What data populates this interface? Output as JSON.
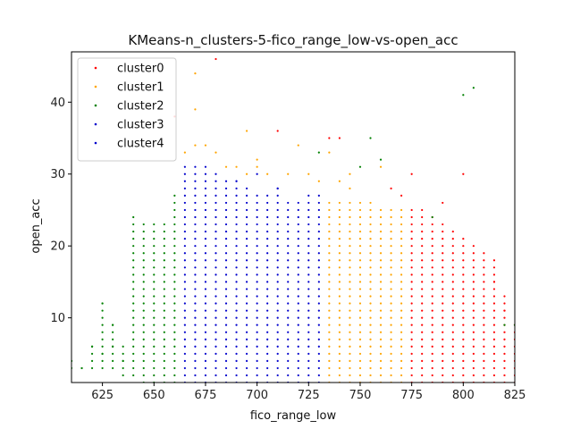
{
  "chart_data": {
    "type": "scatter",
    "title": "KMeans-n_clusters-5-fico_range_low-vs-open_acc",
    "xlabel": "fico_range_low",
    "ylabel": "open_acc",
    "xlim": [
      610,
      825
    ],
    "ylim": [
      1,
      47
    ],
    "xticks": [
      625,
      650,
      675,
      700,
      725,
      750,
      775,
      800,
      825
    ],
    "yticks": [
      10,
      20,
      30,
      40
    ],
    "grid": false,
    "legend_position": "top-left",
    "grid_fill": {
      "x_start": 610,
      "x_step": 5,
      "cluster_ranges": [
        {
          "cluster": "cluster2",
          "x_min": 610,
          "x_max": 660
        },
        {
          "cluster": "cluster3",
          "x_min": 665,
          "x_max": 730
        },
        {
          "cluster": "cluster1",
          "x_min": 735,
          "x_max": 770
        },
        {
          "cluster": "cluster0",
          "x_min": 775,
          "x_max": 825
        }
      ],
      "column_max_y": [
        [
          610,
          4
        ],
        [
          615,
          3
        ],
        [
          620,
          6
        ],
        [
          625,
          12
        ],
        [
          630,
          9
        ],
        [
          635,
          6
        ],
        [
          640,
          24
        ],
        [
          645,
          23
        ],
        [
          650,
          23
        ],
        [
          655,
          23
        ],
        [
          660,
          27
        ],
        [
          665,
          31
        ],
        [
          670,
          31
        ],
        [
          675,
          31
        ],
        [
          680,
          30
        ],
        [
          685,
          29
        ],
        [
          690,
          29
        ],
        [
          695,
          28
        ],
        [
          700,
          27
        ],
        [
          705,
          27
        ],
        [
          710,
          28
        ],
        [
          715,
          26
        ],
        [
          720,
          26
        ],
        [
          725,
          27
        ],
        [
          730,
          27
        ],
        [
          735,
          26
        ],
        [
          740,
          26
        ],
        [
          745,
          26
        ],
        [
          750,
          26
        ],
        [
          755,
          26
        ],
        [
          760,
          25
        ],
        [
          765,
          25
        ],
        [
          770,
          25
        ],
        [
          775,
          25
        ],
        [
          780,
          25
        ],
        [
          785,
          24
        ],
        [
          790,
          23
        ],
        [
          795,
          22
        ],
        [
          800,
          21
        ],
        [
          805,
          20
        ],
        [
          810,
          19
        ],
        [
          815,
          18
        ],
        [
          820,
          13
        ],
        [
          825,
          9
        ]
      ],
      "column_min_y": [
        [
          610,
          3
        ],
        [
          615,
          3
        ],
        [
          620,
          3
        ],
        [
          625,
          3
        ],
        [
          630,
          3
        ],
        [
          635,
          2
        ],
        [
          640,
          2
        ]
      ]
    },
    "series": [
      {
        "name": "cluster0",
        "color": "#ff0000",
        "extra_points": [
          [
            680,
            46
          ],
          [
            660,
            38
          ],
          [
            710,
            36
          ],
          [
            735,
            35
          ],
          [
            740,
            35
          ],
          [
            800,
            30
          ],
          [
            790,
            26
          ],
          [
            815,
            15
          ],
          [
            820,
            11
          ],
          [
            765,
            28
          ],
          [
            775,
            30
          ],
          [
            770,
            27
          ]
        ]
      },
      {
        "name": "cluster1",
        "color": "#ffa500",
        "extra_points": [
          [
            670,
            44
          ],
          [
            670,
            39
          ],
          [
            695,
            36
          ],
          [
            720,
            34
          ],
          [
            680,
            33
          ],
          [
            670,
            34
          ],
          [
            675,
            34
          ],
          [
            665,
            33
          ],
          [
            700,
            32
          ],
          [
            700,
            31
          ],
          [
            690,
            31
          ],
          [
            685,
            31
          ],
          [
            695,
            30
          ],
          [
            705,
            30
          ],
          [
            715,
            30
          ],
          [
            725,
            30
          ],
          [
            730,
            29
          ],
          [
            745,
            28
          ],
          [
            740,
            29
          ],
          [
            760,
            31
          ],
          [
            735,
            33
          ],
          [
            745,
            30
          ]
        ]
      },
      {
        "name": "cluster2",
        "color": "#008000",
        "extra_points": [
          [
            805,
            42
          ],
          [
            800,
            41
          ],
          [
            755,
            35
          ],
          [
            730,
            33
          ],
          [
            760,
            32
          ],
          [
            750,
            31
          ],
          [
            625,
            12
          ],
          [
            630,
            9
          ],
          [
            620,
            6
          ],
          [
            630,
            6
          ],
          [
            625,
            5
          ],
          [
            610,
            4
          ],
          [
            615,
            3
          ],
          [
            635,
            4
          ],
          [
            785,
            24
          ],
          [
            825,
            9
          ],
          [
            820,
            9
          ]
        ]
      },
      {
        "name": "cluster3",
        "color": "#0000cc",
        "extra_points": [
          [
            700,
            30
          ],
          [
            690,
            29
          ],
          [
            710,
            28
          ]
        ]
      },
      {
        "name": "cluster4",
        "color": "#0000cc",
        "extra_points": []
      }
    ]
  }
}
